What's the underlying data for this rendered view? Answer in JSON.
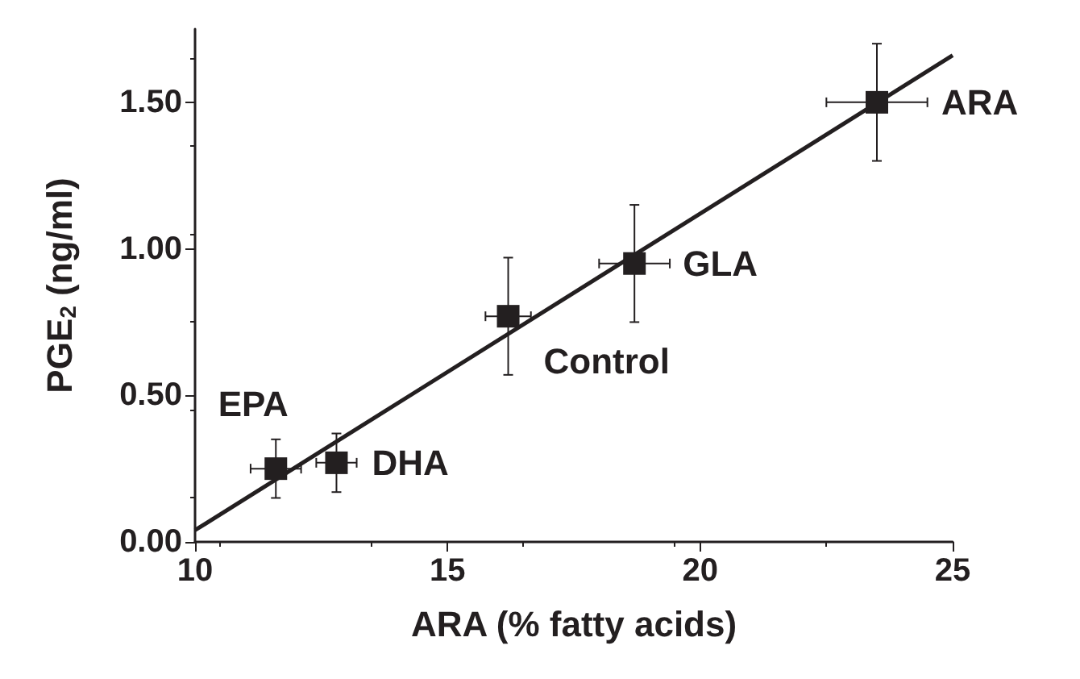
{
  "chart_data": {
    "type": "scatter",
    "xlabel": "ARA (% fatty acids)",
    "ylabel": "PGE$_{2}$ (ng/ml)",
    "xlim": [
      10,
      25
    ],
    "xticks": [
      10,
      15,
      20,
      25
    ],
    "ylim": [
      0,
      1.75
    ],
    "yticks": [
      {
        "value": 0,
        "label": "0.00"
      },
      {
        "value": 0.5,
        "label": "0.50"
      },
      {
        "value": 1,
        "label": "1.00"
      },
      {
        "value": 1.5,
        "label": "1.50"
      }
    ],
    "marker": "square",
    "grid": false,
    "series": [
      {
        "color": "#231f20",
        "x": [
          11.6,
          12.8,
          16.2,
          18.7,
          23.5
        ],
        "values": [
          0.25,
          0.27,
          0.77,
          0.95,
          1.5
        ],
        "errors": [
          0.1,
          0.1,
          0.2,
          0.2,
          0.2
        ],
        "xerrors": [
          0.5,
          0.4,
          0.45,
          0.7,
          1.0
        ]
      },
      {
        "type": "line",
        "color": "#231f20",
        "marker": "none",
        "line_style": "solid",
        "x": [
          10,
          25
        ],
        "values": [
          0.04,
          1.66
        ]
      }
    ],
    "annotations": [
      {
        "text": "EPA",
        "x": 11.6,
        "y": 0.25
      },
      {
        "text": "DHA",
        "x": 12.8,
        "y": 0.27
      },
      {
        "text": "Control",
        "x": 16.2,
        "y": 0.77
      },
      {
        "text": "GLA",
        "x": 18.7,
        "y": 0.95
      },
      {
        "text": "ARA",
        "x": 23.5,
        "y": 1.5
      }
    ]
  }
}
